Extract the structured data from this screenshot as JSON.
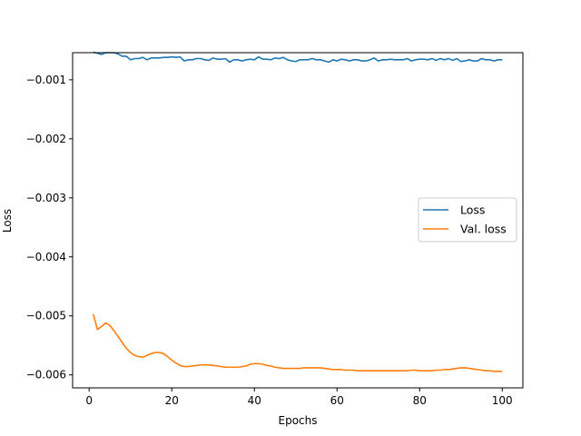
{
  "chart_data": {
    "type": "line",
    "title": "",
    "xlabel": "Epochs",
    "ylabel": "Loss",
    "xlim": [
      -4,
      105
    ],
    "ylim": [
      -0.00622,
      -0.00054
    ],
    "xticks": [
      0,
      20,
      40,
      60,
      80,
      100
    ],
    "xtick_labels": [
      "0",
      "20",
      "40",
      "60",
      "80",
      "100"
    ],
    "yticks": [
      -0.001,
      -0.002,
      -0.003,
      -0.004,
      -0.005,
      -0.006
    ],
    "ytick_labels": [
      "−0.001",
      "−0.002",
      "−0.003",
      "−0.004",
      "−0.005",
      "−0.006"
    ],
    "grid": false,
    "legend_position": "center-right",
    "series": [
      {
        "name": "Loss",
        "color": "#1f77b4",
        "x": [
          1,
          2,
          3,
          4,
          5,
          6,
          7,
          8,
          9,
          10,
          11,
          12,
          13,
          14,
          15,
          16,
          17,
          18,
          19,
          20,
          21,
          22,
          23,
          24,
          25,
          26,
          27,
          28,
          29,
          30,
          31,
          32,
          33,
          34,
          35,
          36,
          37,
          38,
          39,
          40,
          41,
          42,
          43,
          44,
          45,
          46,
          47,
          48,
          49,
          50,
          51,
          52,
          53,
          54,
          55,
          56,
          57,
          58,
          59,
          60,
          61,
          62,
          63,
          64,
          65,
          66,
          67,
          68,
          69,
          70,
          71,
          72,
          73,
          74,
          75,
          76,
          77,
          78,
          79,
          80,
          81,
          82,
          83,
          84,
          85,
          86,
          87,
          88,
          89,
          90,
          91,
          92,
          93,
          94,
          95,
          96,
          97,
          98,
          99,
          100
        ],
        "values": [
          -0.00053,
          -0.00055,
          -0.00057,
          -0.00054,
          -0.00054,
          -0.00054,
          -0.00056,
          -0.0006,
          -0.0006,
          -0.00066,
          -0.00064,
          -0.00064,
          -0.00062,
          -0.00066,
          -0.00063,
          -0.00063,
          -0.00063,
          -0.00062,
          -0.00062,
          -0.00061,
          -0.00062,
          -0.00061,
          -0.00068,
          -0.00066,
          -0.00066,
          -0.00064,
          -0.00064,
          -0.00066,
          -0.00067,
          -0.00063,
          -0.00065,
          -0.00065,
          -0.00064,
          -0.0007,
          -0.00066,
          -0.00066,
          -0.00068,
          -0.00066,
          -0.00065,
          -0.00066,
          -0.00061,
          -0.00065,
          -0.00065,
          -0.00066,
          -0.00063,
          -0.00064,
          -0.00062,
          -0.00066,
          -0.00068,
          -0.00069,
          -0.00066,
          -0.00066,
          -0.00066,
          -0.00064,
          -0.00066,
          -0.00066,
          -0.00068,
          -0.0007,
          -0.00066,
          -0.00068,
          -0.00065,
          -0.00066,
          -0.00068,
          -0.00066,
          -0.00066,
          -0.00068,
          -0.00068,
          -0.00066,
          -0.00063,
          -0.00068,
          -0.00066,
          -0.00066,
          -0.00065,
          -0.00066,
          -0.00066,
          -0.00066,
          -0.00064,
          -0.00068,
          -0.00066,
          -0.00065,
          -0.00065,
          -0.00066,
          -0.00064,
          -0.00067,
          -0.00064,
          -0.00066,
          -0.00064,
          -0.00067,
          -0.00064,
          -0.00069,
          -0.00068,
          -0.00066,
          -0.00068,
          -0.00068,
          -0.00064,
          -0.00066,
          -0.00066,
          -0.00068,
          -0.00066,
          -0.00066
        ]
      },
      {
        "name": "Val. loss",
        "color": "#ff7f0e",
        "x": [
          1,
          2,
          3,
          4,
          5,
          6,
          7,
          8,
          9,
          10,
          11,
          12,
          13,
          14,
          15,
          16,
          17,
          18,
          19,
          20,
          21,
          22,
          23,
          24,
          25,
          26,
          27,
          28,
          29,
          30,
          31,
          32,
          33,
          34,
          35,
          36,
          37,
          38,
          39,
          40,
          41,
          42,
          43,
          44,
          45,
          46,
          47,
          48,
          49,
          50,
          51,
          52,
          53,
          54,
          55,
          56,
          57,
          58,
          59,
          60,
          61,
          62,
          63,
          64,
          65,
          66,
          67,
          68,
          69,
          70,
          71,
          72,
          73,
          74,
          75,
          76,
          77,
          78,
          79,
          80,
          81,
          82,
          83,
          84,
          85,
          86,
          87,
          88,
          89,
          90,
          91,
          92,
          93,
          94,
          95,
          96,
          97,
          98,
          99,
          100
        ],
        "values": [
          -0.00497,
          -0.00523,
          -0.00518,
          -0.00512,
          -0.00516,
          -0.00525,
          -0.00535,
          -0.00545,
          -0.00555,
          -0.00562,
          -0.00567,
          -0.00569,
          -0.0057,
          -0.00567,
          -0.00564,
          -0.00562,
          -0.00562,
          -0.00564,
          -0.00569,
          -0.00575,
          -0.0058,
          -0.00584,
          -0.00586,
          -0.00586,
          -0.00585,
          -0.00584,
          -0.00583,
          -0.00583,
          -0.00583,
          -0.00584,
          -0.00585,
          -0.00586,
          -0.00587,
          -0.00587,
          -0.00587,
          -0.00587,
          -0.00586,
          -0.00585,
          -0.00582,
          -0.00581,
          -0.00581,
          -0.00582,
          -0.00584,
          -0.00585,
          -0.00587,
          -0.00588,
          -0.00589,
          -0.00589,
          -0.00589,
          -0.00589,
          -0.00589,
          -0.00588,
          -0.00588,
          -0.00588,
          -0.00588,
          -0.00588,
          -0.00589,
          -0.0059,
          -0.00591,
          -0.00591,
          -0.00591,
          -0.00592,
          -0.00592,
          -0.00592,
          -0.00593,
          -0.00593,
          -0.00593,
          -0.00593,
          -0.00593,
          -0.00593,
          -0.00593,
          -0.00593,
          -0.00593,
          -0.00593,
          -0.00593,
          -0.00593,
          -0.00593,
          -0.00592,
          -0.00592,
          -0.00593,
          -0.00593,
          -0.00593,
          -0.00593,
          -0.00592,
          -0.00592,
          -0.00591,
          -0.00591,
          -0.0059,
          -0.00589,
          -0.00588,
          -0.00588,
          -0.00589,
          -0.0059,
          -0.00591,
          -0.00592,
          -0.00593,
          -0.00593,
          -0.00594,
          -0.00594,
          -0.00594
        ]
      }
    ]
  }
}
